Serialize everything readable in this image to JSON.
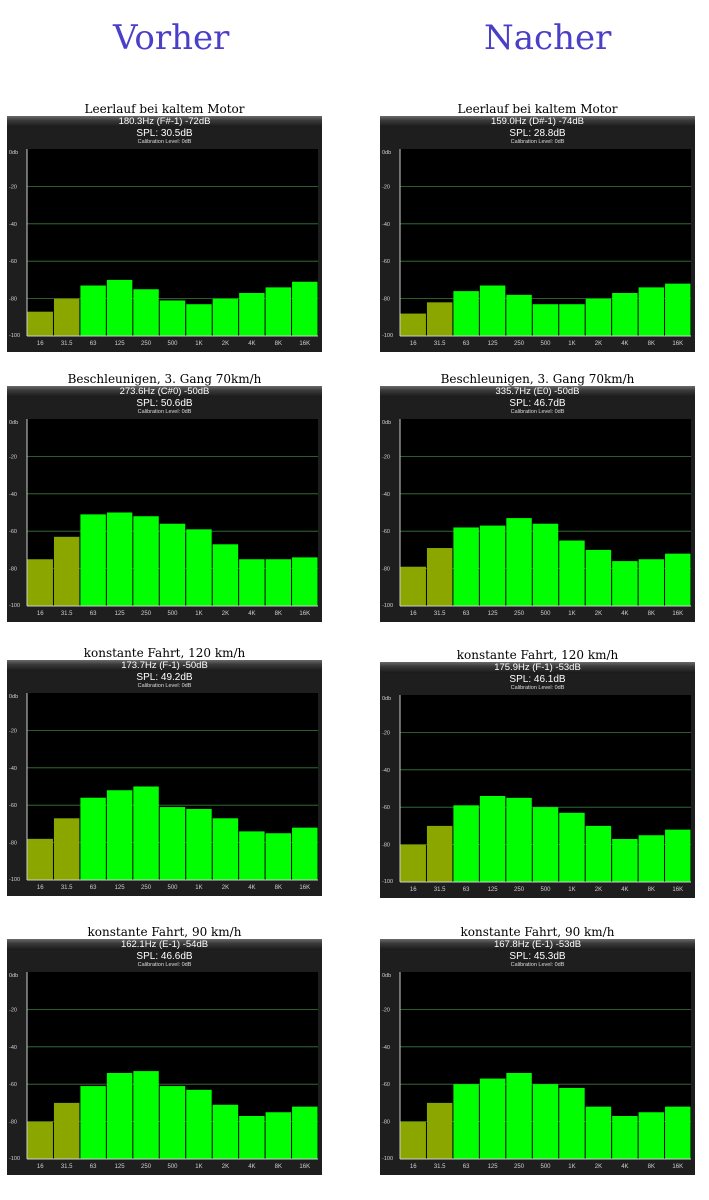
{
  "columns": {
    "left": "Vorher",
    "right": "Nacher"
  },
  "y_ticks": [
    "0db",
    "-20",
    "-40",
    "-60",
    "-80",
    "-100"
  ],
  "colors": {
    "band_low": "#8ca600",
    "band_high": "#00ff00",
    "background": "#1e1e1e",
    "grid": "#3a7a3a"
  },
  "panels": [
    {
      "caption": "Leerlauf bei kaltem Motor",
      "freq": "180.3Hz (F#-1) -72dB",
      "spl": "SPL: 30.5dB",
      "cal": "Calibration Level: 0dB"
    },
    {
      "caption": "Leerlauf bei kaltem Motor",
      "freq": "159.0Hz (D#-1) -74dB",
      "spl": "SPL: 28.8dB",
      "cal": "Calibration Level: 0dB"
    },
    {
      "caption": "Beschleunigen, 3. Gang 70km/h",
      "freq": "273.6Hz (C#0) -50dB",
      "spl": "SPL: 50.6dB",
      "cal": "Calibration Level: 0dB"
    },
    {
      "caption": "Beschleunigen, 3. Gang 70km/h",
      "freq": "335.7Hz (E0) -50dB",
      "spl": "SPL: 46.7dB",
      "cal": "Calibration Level: 0dB"
    },
    {
      "caption": "konstante Fahrt, 120 km/h",
      "freq": "173.7Hz (F-1) -50dB",
      "spl": "SPL: 49.2dB",
      "cal": "Calibration Level: 0dB"
    },
    {
      "caption": "konstante Fahrt, 120 km/h",
      "freq": "175.9Hz (F-1) -53dB",
      "spl": "SPL: 46.1dB",
      "cal": "Calibration Level: 0dB"
    },
    {
      "caption": "konstante Fahrt, 90 km/h",
      "freq": "162.1Hz (E-1) -54dB",
      "spl": "SPL: 46.6dB",
      "cal": "Calibration Level: 0dB"
    },
    {
      "caption": "konstante Fahrt, 90 km/h",
      "freq": "167.8Hz (E-1) -53dB",
      "spl": "SPL: 45.3dB",
      "cal": "Calibration Level: 0dB"
    }
  ],
  "chart_data": [
    {
      "type": "bar",
      "categories": [
        "16",
        "31.5",
        "63",
        "125",
        "250",
        "500",
        "1K",
        "2K",
        "4K",
        "8K",
        "16K"
      ],
      "ylim": [
        -100,
        0
      ],
      "values": [
        -87,
        -80,
        -73,
        -70,
        -75,
        -81,
        -83,
        -80,
        -77,
        -74,
        -71
      ]
    },
    {
      "type": "bar",
      "categories": [
        "16",
        "31.5",
        "63",
        "125",
        "250",
        "500",
        "1K",
        "2K",
        "4K",
        "8K",
        "16K"
      ],
      "ylim": [
        -100,
        0
      ],
      "values": [
        -88,
        -82,
        -76,
        -73,
        -78,
        -83,
        -83,
        -80,
        -77,
        -74,
        -72
      ]
    },
    {
      "type": "bar",
      "categories": [
        "16",
        "31.5",
        "63",
        "125",
        "250",
        "500",
        "1K",
        "2K",
        "4K",
        "8K",
        "16K"
      ],
      "ylim": [
        -100,
        0
      ],
      "values": [
        -75,
        -63,
        -51,
        -50,
        -52,
        -56,
        -59,
        -67,
        -75,
        -75,
        -74
      ]
    },
    {
      "type": "bar",
      "categories": [
        "16",
        "31.5",
        "63",
        "125",
        "250",
        "500",
        "1K",
        "2K",
        "4K",
        "8K",
        "16K"
      ],
      "ylim": [
        -100,
        0
      ],
      "values": [
        -79,
        -69,
        -58,
        -57,
        -53,
        -56,
        -65,
        -70,
        -76,
        -75,
        -72
      ]
    },
    {
      "type": "bar",
      "categories": [
        "16",
        "31.5",
        "63",
        "125",
        "250",
        "500",
        "1K",
        "2K",
        "4K",
        "8K",
        "16K"
      ],
      "ylim": [
        -100,
        0
      ],
      "values": [
        -78,
        -67,
        -56,
        -52,
        -50,
        -61,
        -62,
        -67,
        -74,
        -75,
        -72
      ]
    },
    {
      "type": "bar",
      "categories": [
        "16",
        "31.5",
        "63",
        "125",
        "250",
        "500",
        "1K",
        "2K",
        "4K",
        "8K",
        "16K"
      ],
      "ylim": [
        -100,
        0
      ],
      "values": [
        -80,
        -70,
        -59,
        -54,
        -55,
        -60,
        -63,
        -70,
        -77,
        -75,
        -72
      ]
    },
    {
      "type": "bar",
      "categories": [
        "16",
        "31.5",
        "63",
        "125",
        "250",
        "500",
        "1K",
        "2K",
        "4K",
        "8K",
        "16K"
      ],
      "ylim": [
        -100,
        0
      ],
      "values": [
        -80,
        -70,
        -61,
        -54,
        -53,
        -61,
        -63,
        -71,
        -77,
        -75,
        -72
      ]
    },
    {
      "type": "bar",
      "categories": [
        "16",
        "31.5",
        "63",
        "125",
        "250",
        "500",
        "1K",
        "2K",
        "4K",
        "8K",
        "16K"
      ],
      "ylim": [
        -100,
        0
      ],
      "values": [
        -80,
        -70,
        -60,
        -57,
        -54,
        -60,
        -62,
        -72,
        -77,
        -75,
        -72
      ]
    }
  ]
}
